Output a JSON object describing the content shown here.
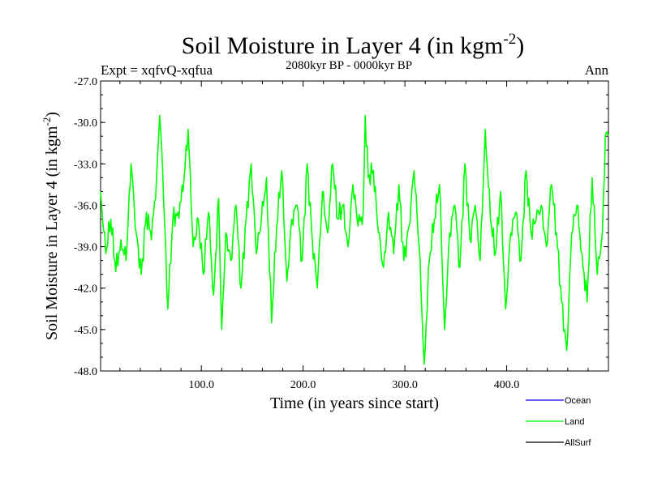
{
  "chart_data": {
    "type": "line",
    "title": "Soil Moisture in Layer 4 (in kgm",
    "title_sup": "-2",
    "title_end": ")",
    "subtitle": "2080kyr BP - 0000kyr BP",
    "left_label": "Expt = xqfvQ-xqfua",
    "right_label": "Ann",
    "xlabel": "Time (in years since start)",
    "ylabel": "Soil Moisture in Layer 4 (in kgm",
    "ylabel_sup": "-2",
    "ylabel_end": ")",
    "xlim": [
      1,
      500
    ],
    "ylim": [
      -48.0,
      -27.0
    ],
    "xticks": [
      100,
      200,
      300,
      400
    ],
    "xtick_labels": [
      "100.0",
      "200.0",
      "300.0",
      "400.0"
    ],
    "yticks": [
      -27,
      -30,
      -33,
      -36,
      -39,
      -42,
      -45,
      -48
    ],
    "ytick_labels": [
      "-27.0",
      "-30.0",
      "-33.0",
      "-36.0",
      "-39.0",
      "-42.0",
      "-45.0",
      "-48.0"
    ],
    "legend": [
      {
        "name": "Ocean",
        "color": "#0000ff"
      },
      {
        "name": "Land",
        "color": "#00ff00"
      },
      {
        "name": "AllSurf",
        "color": "#000000"
      }
    ],
    "series": [
      {
        "name": "Land",
        "color": "#00ff00",
        "x": [
          1,
          6,
          11,
          16,
          21,
          26,
          31,
          36,
          41,
          46,
          51,
          56,
          59,
          62,
          67,
          72,
          77,
          82,
          87,
          92,
          97,
          102,
          107,
          112,
          117,
          120,
          124,
          129,
          134,
          139,
          144,
          149,
          154,
          159,
          164,
          169,
          174,
          179,
          184,
          189,
          194,
          199,
          204,
          209,
          214,
          219,
          224,
          229,
          234,
          239,
          244,
          249,
          254,
          259,
          261,
          264,
          269,
          274,
          279,
          284,
          289,
          294,
          299,
          304,
          309,
          314,
          319,
          324,
          329,
          334,
          339,
          344,
          349,
          354,
          359,
          364,
          369,
          374,
          379,
          384,
          389,
          394,
          399,
          404,
          409,
          414,
          419,
          424,
          429,
          434,
          439,
          444,
          449,
          454,
          459,
          464,
          469,
          474,
          479,
          484,
          489,
          494,
          497,
          500
        ],
        "values": [
          -35.0,
          -39.5,
          -37.0,
          -40.8,
          -38.5,
          -40.0,
          -33.0,
          -38.0,
          -41.0,
          -36.5,
          -38.5,
          -34.0,
          -29.5,
          -33.5,
          -43.5,
          -37.0,
          -36.5,
          -35.0,
          -30.5,
          -39.0,
          -37.0,
          -41.0,
          -36.5,
          -42.5,
          -35.5,
          -45.0,
          -38.0,
          -40.0,
          -36.0,
          -42.0,
          -37.0,
          -33.0,
          -39.5,
          -37.0,
          -34.0,
          -44.5,
          -37.5,
          -33.5,
          -41.5,
          -37.0,
          -36.0,
          -40.0,
          -33.0,
          -38.5,
          -42.0,
          -35.0,
          -38.0,
          -33.0,
          -37.0,
          -36.0,
          -39.0,
          -34.5,
          -37.5,
          -36.5,
          -29.5,
          -34.0,
          -33.5,
          -38.0,
          -40.5,
          -36.5,
          -39.5,
          -34.5,
          -40.0,
          -37.5,
          -33.5,
          -39.0,
          -47.5,
          -40.0,
          -37.0,
          -34.5,
          -45.0,
          -38.0,
          -36.0,
          -40.5,
          -33.0,
          -38.5,
          -36.0,
          -40.0,
          -30.5,
          -37.0,
          -39.5,
          -35.0,
          -43.5,
          -38.0,
          -36.5,
          -40.0,
          -33.5,
          -38.0,
          -37.0,
          -36.0,
          -39.0,
          -34.5,
          -38.0,
          -43.0,
          -46.5,
          -38.0,
          -36.0,
          -39.5,
          -43.0,
          -34.0,
          -41.0,
          -38.0,
          -31.0,
          -31.0
        ]
      },
      {
        "name": "Ocean",
        "color": "#0000ff",
        "values": []
      },
      {
        "name": "AllSurf",
        "color": "#000000",
        "values": []
      }
    ]
  }
}
